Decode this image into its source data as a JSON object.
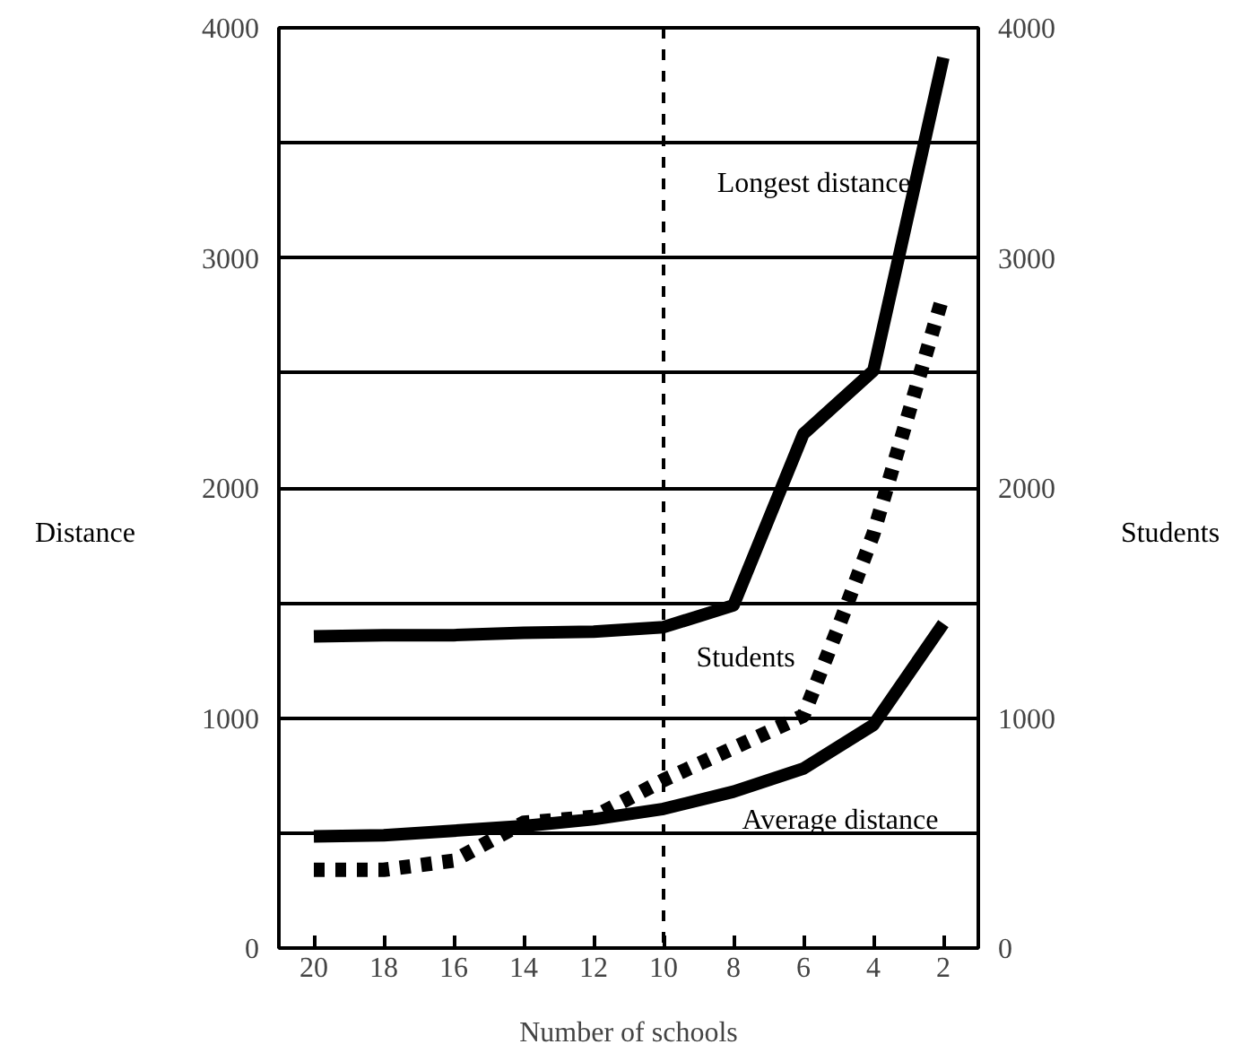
{
  "chart_data": {
    "type": "line",
    "xlabel": "Number of schools",
    "ylabel": "Distance",
    "y2label": "Students",
    "x": [
      20,
      18,
      16,
      14,
      12,
      10,
      8,
      6,
      4,
      2
    ],
    "series": [
      {
        "name": "Longest distance",
        "color": "#000000",
        "line_style": "solid",
        "values": [
          1355,
          1360,
          1360,
          1370,
          1375,
          1395,
          1490,
          2235,
          2510,
          3870
        ]
      },
      {
        "name": "Average distance",
        "color": "#000000",
        "line_style": "solid",
        "values": [
          485,
          490,
          510,
          530,
          560,
          605,
          680,
          780,
          970,
          1410
        ]
      },
      {
        "name": "Students",
        "color": "#000000",
        "line_style": "dotted",
        "axis": "y2",
        "x": [
          20,
          18,
          16,
          14,
          12,
          10,
          8,
          6,
          5,
          4,
          2
        ],
        "values": [
          340,
          340,
          380,
          545,
          570,
          730,
          870,
          1010,
          1395,
          1800,
          2840
        ]
      }
    ],
    "xlim": [
      21,
      1
    ],
    "xticks": [
      20,
      18,
      16,
      14,
      12,
      10,
      8,
      6,
      4,
      2
    ],
    "ylim": [
      0,
      4000
    ],
    "yticks": [
      0,
      {
        "value": 500,
        "label": null
      },
      1000,
      {
        "value": 1500,
        "label": null
      },
      2000,
      {
        "value": 2500,
        "label": null
      },
      3000,
      {
        "value": 3500,
        "label": null
      },
      4000
    ],
    "y2lim": [
      0,
      4000
    ],
    "y2ticks": [
      0,
      1000,
      2000,
      3000,
      4000
    ],
    "grid": "y",
    "marker": "none",
    "ref_lines": [
      {
        "axis": "x",
        "value": 10,
        "line_style": "dashed",
        "color": "#000000"
      }
    ]
  }
}
